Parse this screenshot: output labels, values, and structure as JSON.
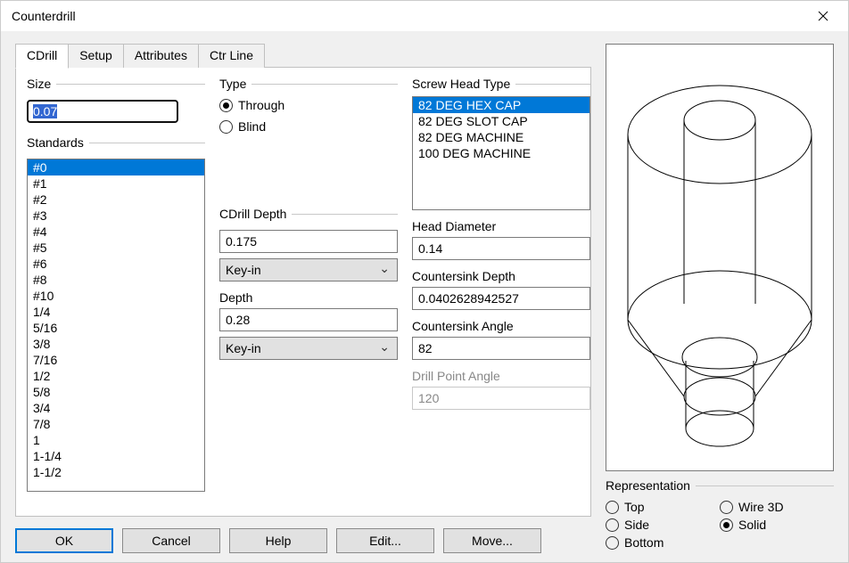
{
  "window": {
    "title": "Counterdrill"
  },
  "tabs": [
    "CDrill",
    "Setup",
    "Attributes",
    "Ctr Line"
  ],
  "active_tab": 0,
  "size": {
    "label": "Size",
    "value": "0.07"
  },
  "standards": {
    "label": "Standards",
    "items": [
      "#0",
      "#1",
      "#2",
      "#3",
      "#4",
      "#5",
      "#6",
      "#8",
      "#10",
      "1/4",
      "5/16",
      "3/8",
      "7/16",
      "1/2",
      "5/8",
      "3/4",
      "7/8",
      "1",
      "1-1/4",
      "1-1/2"
    ],
    "selected_index": 0
  },
  "type_group": {
    "label": "Type",
    "options": [
      {
        "label": "Through",
        "value": "through"
      },
      {
        "label": "Blind",
        "value": "blind"
      }
    ],
    "selected": "through"
  },
  "cdrill_depth": {
    "label": "CDrill Depth",
    "value": "0.175",
    "mode": "Key-in"
  },
  "depth": {
    "label": "Depth",
    "value": "0.28",
    "mode": "Key-in"
  },
  "screw_head": {
    "label": "Screw Head Type",
    "items": [
      "82 DEG HEX CAP",
      "82 DEG SLOT CAP",
      "82 DEG MACHINE",
      "100 DEG MACHINE"
    ],
    "selected_index": 0
  },
  "head_diameter": {
    "label": "Head Diameter",
    "value": "0.14"
  },
  "csk_depth": {
    "label": "Countersink Depth",
    "value": "0.0402628942527"
  },
  "csk_angle": {
    "label": "Countersink Angle",
    "value": "82"
  },
  "drill_point_angle": {
    "label": "Drill Point Angle",
    "value": "120",
    "disabled": true
  },
  "representation": {
    "label": "Representation",
    "options_left": [
      {
        "label": "Top",
        "value": "top"
      },
      {
        "label": "Side",
        "value": "side"
      },
      {
        "label": "Bottom",
        "value": "bottom"
      }
    ],
    "options_right": [
      {
        "label": "Wire 3D",
        "value": "wire3d"
      },
      {
        "label": "Solid",
        "value": "solid"
      }
    ],
    "selected": "solid"
  },
  "buttons": {
    "ok": "OK",
    "cancel": "Cancel",
    "help": "Help",
    "edit": "Edit...",
    "move": "Move..."
  },
  "colors": {
    "selection": "#0078d7",
    "panel_bg": "#f0f0f0",
    "border": "#7a7a7a"
  }
}
